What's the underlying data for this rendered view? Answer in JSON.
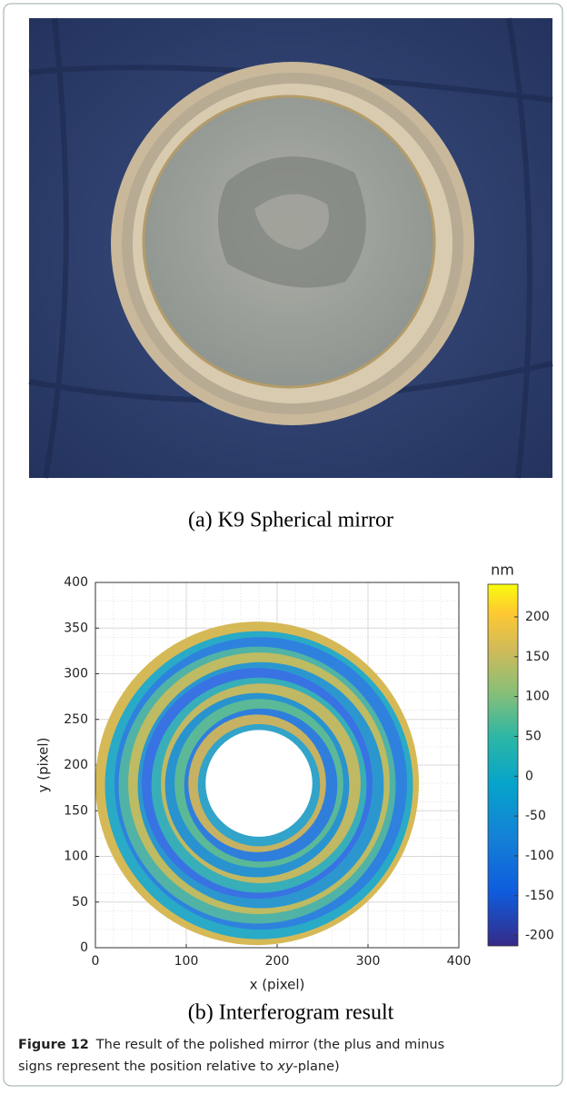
{
  "panel_a": {
    "caption": "(a) K9 Spherical mirror"
  },
  "chart_data": {
    "type": "heatmap",
    "xlabel": "x (pixel)",
    "ylabel": "y (pixel)",
    "xlim": [
      0,
      400
    ],
    "ylim": [
      0,
      400
    ],
    "xticks": [
      0,
      100,
      200,
      300,
      400
    ],
    "yticks": [
      0,
      50,
      100,
      150,
      200,
      250,
      300,
      350,
      400
    ],
    "grid": true,
    "colorbar": {
      "label": "nm",
      "lim": [
        -213,
        241
      ],
      "ticks": [
        -200,
        -150,
        -100,
        -50,
        0,
        50,
        100,
        150,
        200
      ]
    },
    "caption": "(b) Interferogram result"
  },
  "figure": {
    "label": "Figure 12",
    "caption_line1": "The result of the polished mirror (the plus and minus",
    "caption_line2_start": "signs represent the position relative to ",
    "caption_italic": "xy",
    "caption_line2_end": "-plane)"
  }
}
